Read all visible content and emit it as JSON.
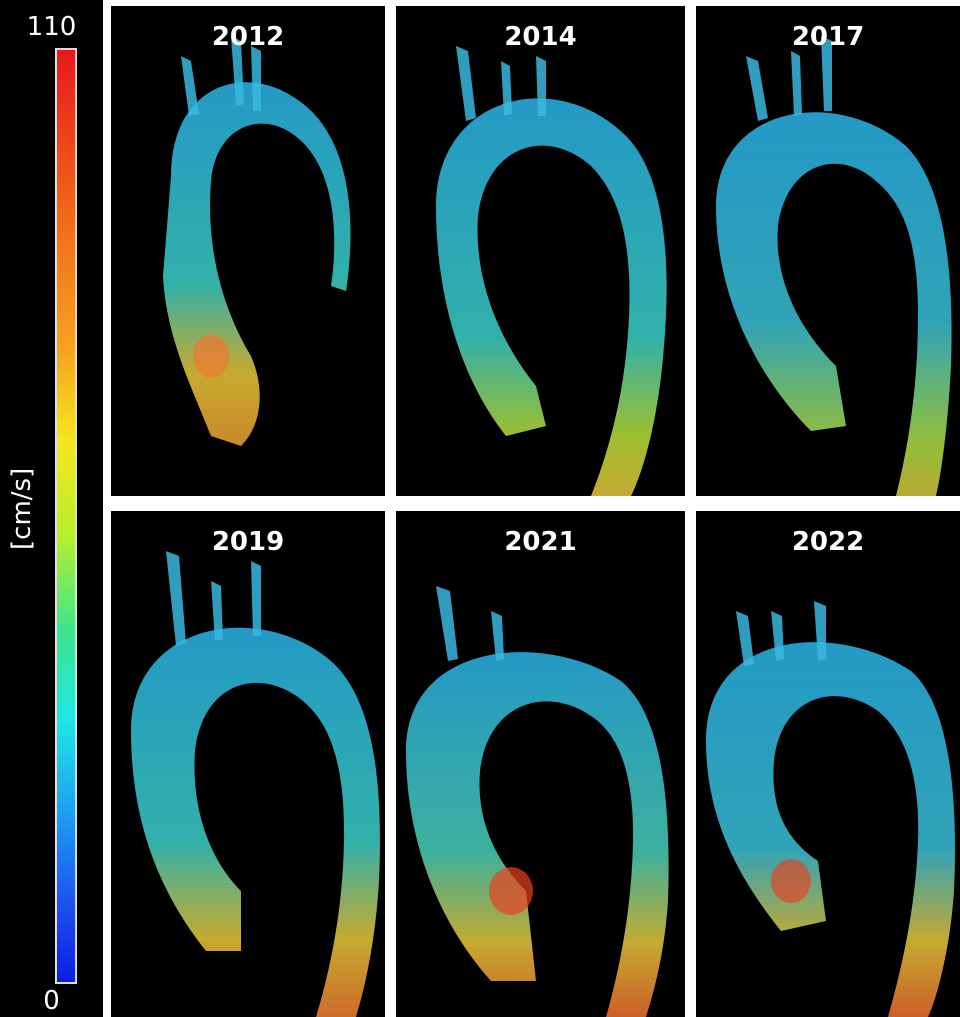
{
  "colorbar": {
    "max_label": "110",
    "min_label": "0",
    "unit_label": "[cm/s]",
    "colors": [
      "#e8181c",
      "#f6a21e",
      "#f6e61e",
      "#3fe58c",
      "#1ee6e6",
      "#1e9ef2",
      "#0a1ee6"
    ]
  },
  "panels": [
    {
      "year": "2012"
    },
    {
      "year": "2014"
    },
    {
      "year": "2017"
    },
    {
      "year": "2019"
    },
    {
      "year": "2021"
    },
    {
      "year": "2022"
    }
  ]
}
